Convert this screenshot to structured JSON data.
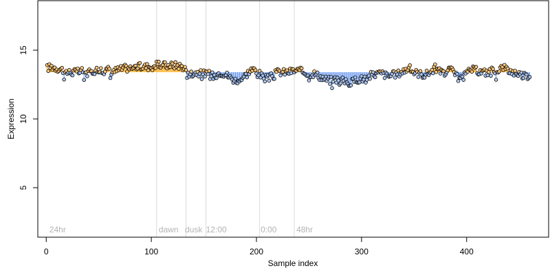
{
  "chart_data": {
    "type": "scatter",
    "title": "",
    "xlabel": "Sample index",
    "ylabel": "Expression",
    "xlim": [
      -8,
      478
    ],
    "ylim": [
      1.4,
      18.6
    ],
    "xticks": [
      0,
      100,
      200,
      300,
      400
    ],
    "yticks": [
      5,
      10,
      15
    ],
    "grid": false,
    "baseline": 13.4,
    "colors": {
      "above": "#ffa500",
      "below": "#6495ed",
      "point_fill_above": "#ffc87a",
      "point_fill_below": "#a9c5f5",
      "point_stroke": "#000000",
      "vline": "#d9d9d9",
      "period_text": "#b3b3b3"
    },
    "vlines": [
      105,
      133,
      152,
      203,
      236
    ],
    "period_labels": [
      {
        "x": 3,
        "text": "24hr"
      },
      {
        "x": 107,
        "text": "dawn"
      },
      {
        "x": 132,
        "text": "dusk"
      },
      {
        "x": 152,
        "text": "12:00"
      },
      {
        "x": 204,
        "text": "0:00"
      },
      {
        "x": 238,
        "text": "48hr"
      }
    ],
    "keypoints": [
      [
        1,
        13.7
      ],
      [
        5,
        13.8
      ],
      [
        10,
        13.7
      ],
      [
        15,
        13.6
      ],
      [
        20,
        13.4
      ],
      [
        25,
        13.4
      ],
      [
        30,
        13.4
      ],
      [
        35,
        13.5
      ],
      [
        40,
        13.3
      ],
      [
        45,
        13.5
      ],
      [
        50,
        13.6
      ],
      [
        55,
        13.5
      ],
      [
        60,
        13.6
      ],
      [
        65,
        13.5
      ],
      [
        70,
        13.6
      ],
      [
        75,
        13.7
      ],
      [
        80,
        13.7
      ],
      [
        85,
        13.8
      ],
      [
        90,
        13.8
      ],
      [
        95,
        13.8
      ],
      [
        100,
        13.8
      ],
      [
        105,
        13.9
      ],
      [
        110,
        13.9
      ],
      [
        115,
        13.9
      ],
      [
        120,
        13.9
      ],
      [
        125,
        13.9
      ],
      [
        130,
        13.8
      ],
      [
        133,
        13.6
      ],
      [
        138,
        13.3
      ],
      [
        142,
        13.4
      ],
      [
        147,
        13.3
      ],
      [
        152,
        13.3
      ],
      [
        157,
        13.2
      ],
      [
        160,
        13.1
      ],
      [
        165,
        13.4
      ],
      [
        170,
        13.3
      ],
      [
        175,
        13.0
      ],
      [
        180,
        12.8
      ],
      [
        185,
        12.9
      ],
      [
        190,
        13.2
      ],
      [
        195,
        13.6
      ],
      [
        200,
        13.5
      ],
      [
        205,
        13.1
      ],
      [
        210,
        12.9
      ],
      [
        215,
        13.1
      ],
      [
        220,
        13.4
      ],
      [
        225,
        13.4
      ],
      [
        230,
        13.4
      ],
      [
        235,
        13.5
      ],
      [
        240,
        13.5
      ],
      [
        245,
        13.4
      ],
      [
        250,
        13.3
      ],
      [
        255,
        13.3
      ],
      [
        260,
        13.1
      ],
      [
        265,
        12.9
      ],
      [
        270,
        12.8
      ],
      [
        275,
        12.9
      ],
      [
        280,
        12.8
      ],
      [
        285,
        12.7
      ],
      [
        290,
        12.6
      ],
      [
        295,
        12.9
      ],
      [
        300,
        12.9
      ],
      [
        305,
        13.0
      ],
      [
        310,
        13.2
      ],
      [
        315,
        13.3
      ],
      [
        320,
        13.3
      ],
      [
        325,
        13.1
      ],
      [
        330,
        13.2
      ],
      [
        335,
        13.3
      ],
      [
        340,
        13.5
      ],
      [
        345,
        13.7
      ],
      [
        350,
        13.4
      ],
      [
        355,
        13.3
      ],
      [
        360,
        13.2
      ],
      [
        365,
        13.4
      ],
      [
        370,
        13.7
      ],
      [
        375,
        13.4
      ],
      [
        380,
        13.3
      ],
      [
        385,
        13.6
      ],
      [
        390,
        13.1
      ],
      [
        395,
        12.9
      ],
      [
        400,
        13.3
      ],
      [
        405,
        13.6
      ],
      [
        410,
        13.5
      ],
      [
        415,
        13.4
      ],
      [
        420,
        13.4
      ],
      [
        425,
        13.5
      ],
      [
        430,
        13.6
      ],
      [
        435,
        13.8
      ],
      [
        440,
        13.5
      ],
      [
        445,
        13.4
      ],
      [
        450,
        13.3
      ],
      [
        455,
        13.1
      ],
      [
        460,
        13.2
      ]
    ]
  },
  "labels": {
    "xlabel": "Sample index",
    "ylabel": "Expression",
    "xticks": [
      "0",
      "100",
      "200",
      "300",
      "400"
    ],
    "yticks": [
      "5",
      "10",
      "15"
    ],
    "periods": [
      "24hr",
      "dawn",
      "dusk",
      "12:00",
      "0:00",
      "48hr"
    ]
  }
}
